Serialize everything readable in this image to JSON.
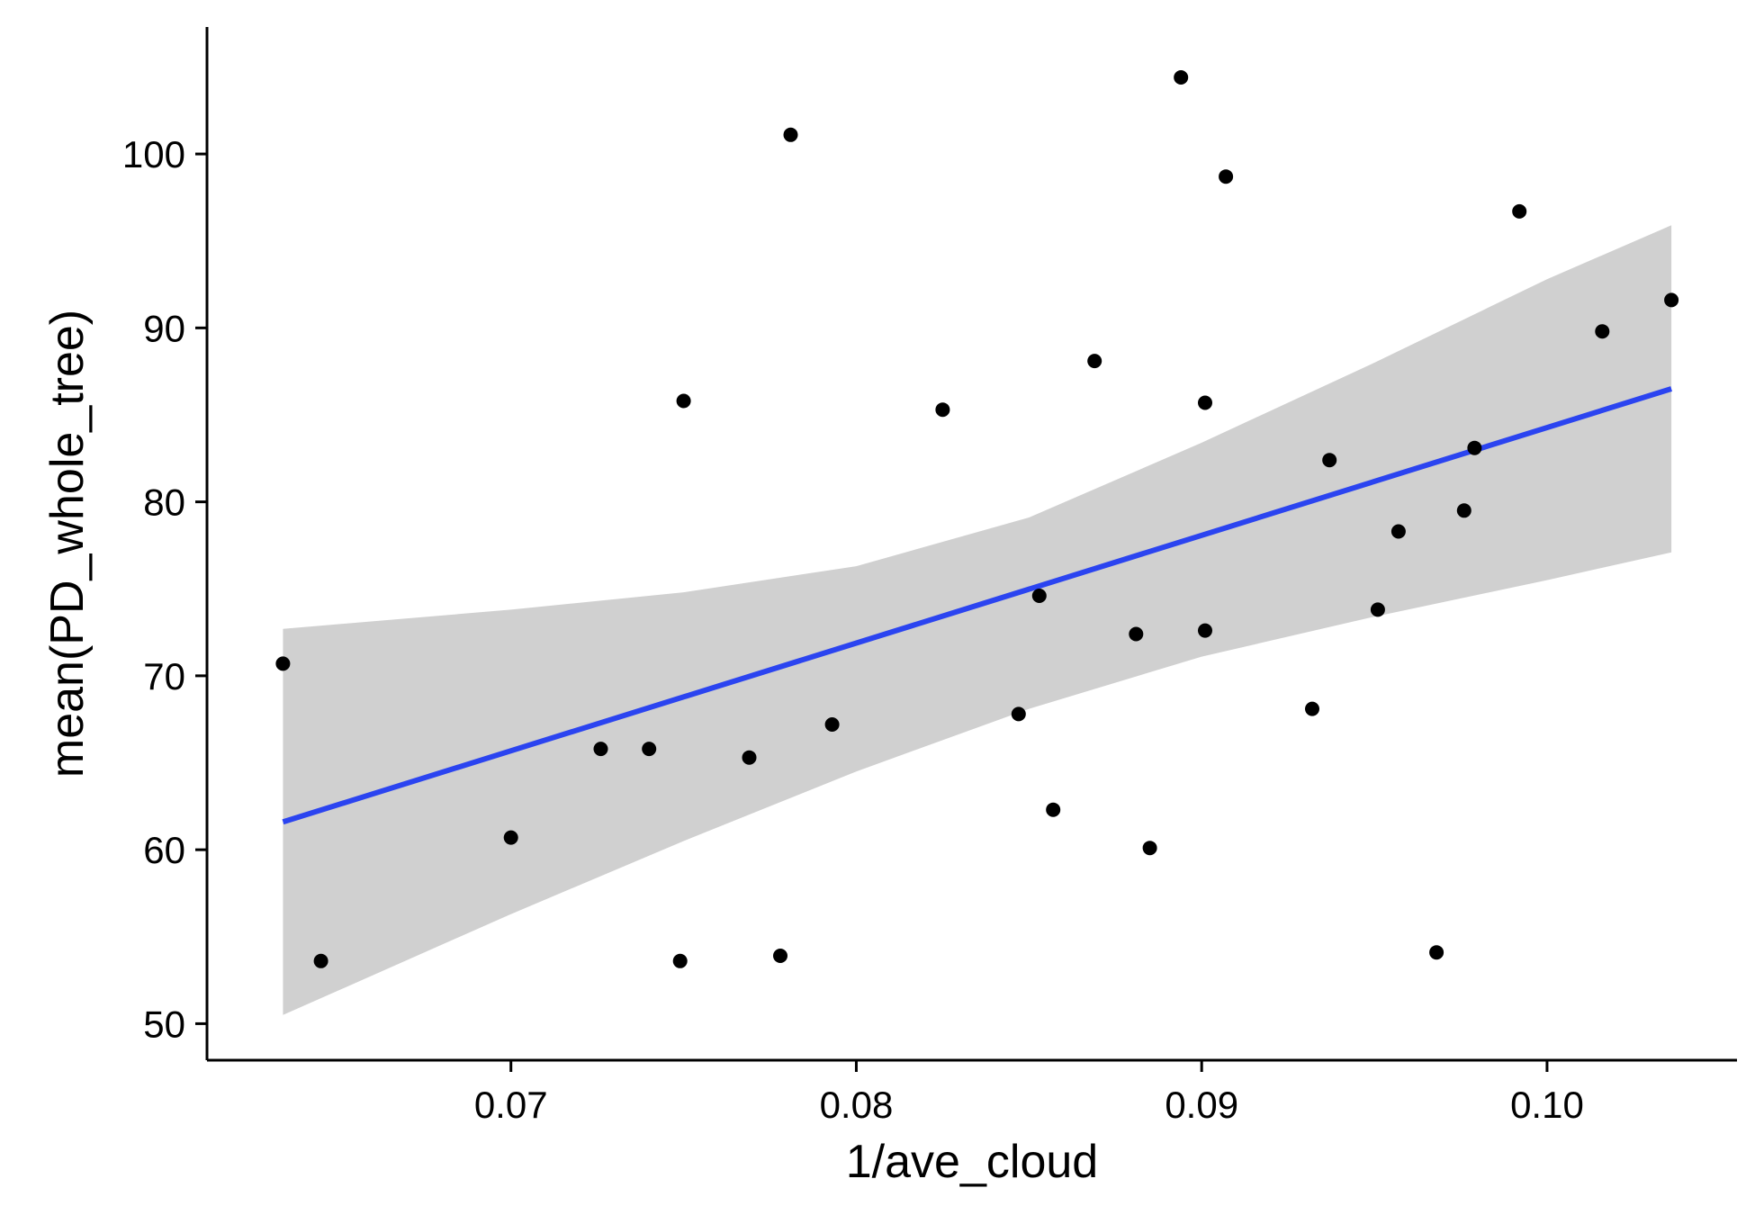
{
  "chart_data": {
    "type": "scatter",
    "title": "",
    "xlabel": "1/ave_cloud",
    "ylabel": "mean(PD_whole_tree)",
    "xlim": [
      0.0612,
      0.1055
    ],
    "ylim": [
      47.9,
      107.3
    ],
    "xticks": [
      0.07,
      0.08,
      0.09,
      0.1
    ],
    "xtick_labels": [
      "0.07",
      "0.08",
      "0.09",
      "0.10"
    ],
    "yticks": [
      50,
      60,
      70,
      80,
      90,
      100
    ],
    "ytick_labels": [
      "50",
      "60",
      "70",
      "80",
      "90",
      "100"
    ],
    "grid": false,
    "legend": "none",
    "colors": {
      "points": "#000000",
      "line": "#2b44f0",
      "band": "#d0d0d0",
      "axis": "#000000"
    },
    "series": [
      {
        "kind": "points",
        "x": [
          0.0634,
          0.0645,
          0.07,
          0.0726,
          0.074,
          0.0749,
          0.075,
          0.0769,
          0.0778,
          0.0781,
          0.0793,
          0.0825,
          0.0847,
          0.0853,
          0.0857,
          0.0869,
          0.0881,
          0.0885,
          0.0894,
          0.0901,
          0.0901,
          0.0907,
          0.0932,
          0.0937,
          0.0951,
          0.0957,
          0.0968,
          0.0976,
          0.0979,
          0.0992,
          0.1016,
          0.1036
        ],
        "y": [
          70.7,
          53.6,
          60.7,
          65.8,
          65.8,
          53.6,
          85.8,
          65.3,
          53.9,
          101.1,
          67.2,
          85.3,
          67.8,
          74.6,
          62.3,
          88.1,
          72.4,
          60.1,
          104.4,
          85.7,
          72.6,
          98.7,
          68.1,
          82.4,
          73.8,
          78.3,
          54.1,
          79.5,
          83.1,
          96.7,
          89.8,
          91.6
        ]
      },
      {
        "kind": "fit",
        "method": "lm",
        "x": [
          0.0634,
          0.1036
        ],
        "y": [
          61.6,
          86.5
        ],
        "band": {
          "x": [
            0.0634,
            0.07,
            0.075,
            0.08,
            0.085,
            0.09,
            0.095,
            0.1,
            0.1036
          ],
          "lower": [
            50.5,
            56.3,
            60.5,
            64.5,
            68.1,
            71.1,
            73.4,
            75.5,
            77.1
          ],
          "upper": [
            72.7,
            73.8,
            74.8,
            76.3,
            79.1,
            83.4,
            88.0,
            92.8,
            95.9
          ]
        }
      }
    ]
  }
}
